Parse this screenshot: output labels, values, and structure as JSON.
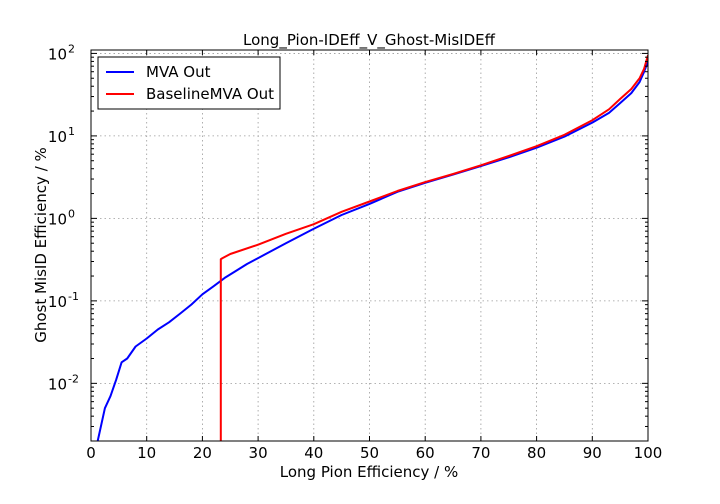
{
  "chart_data": {
    "type": "line",
    "title": "Long_Pion-IDEff_V_Ghost-MisIDEff",
    "xlabel": "Long Pion Efficiency / %",
    "ylabel": "Ghost MisID Efficiency / %",
    "xlim": [
      0,
      100
    ],
    "ylim": [
      0.002,
      110
    ],
    "yscale": "log",
    "grid": true,
    "legend_position": "top-left",
    "x_ticks": [
      "0",
      "10",
      "20",
      "30",
      "40",
      "50",
      "60",
      "70",
      "80",
      "90",
      "100"
    ],
    "y_ticks": [
      {
        "value": 0.01,
        "base": "10",
        "exp": "-2"
      },
      {
        "value": 0.1,
        "base": "10",
        "exp": "-1"
      },
      {
        "value": 1,
        "base": "10",
        "exp": "0"
      },
      {
        "value": 10,
        "base": "10",
        "exp": "1"
      },
      {
        "value": 100,
        "base": "10",
        "exp": "2"
      }
    ],
    "series": [
      {
        "name": "MVA Out",
        "color": "#0000ff",
        "x": [
          1.2,
          2.5,
          3.5,
          4.5,
          5.5,
          6.5,
          8,
          10,
          12,
          14,
          16,
          18,
          20,
          22,
          24,
          26,
          28,
          30,
          35,
          40,
          45,
          50,
          55,
          60,
          65,
          70,
          75,
          80,
          85,
          90,
          93,
          95,
          97,
          98.5,
          99.3,
          100
        ],
        "y": [
          0.002,
          0.005,
          0.007,
          0.011,
          0.018,
          0.02,
          0.028,
          0.035,
          0.045,
          0.055,
          0.07,
          0.09,
          0.12,
          0.15,
          0.19,
          0.23,
          0.28,
          0.33,
          0.5,
          0.75,
          1.1,
          1.5,
          2.1,
          2.7,
          3.4,
          4.3,
          5.5,
          7.2,
          9.8,
          14.5,
          19,
          25,
          33,
          45,
          60,
          80
        ]
      },
      {
        "name": "BaselineMVA Out",
        "color": "#ff0000",
        "x": [
          23.3,
          23.3,
          23.6,
          25,
          30,
          35,
          40,
          45,
          50,
          55,
          60,
          65,
          70,
          75,
          80,
          85,
          90,
          93,
          95,
          97,
          98.5,
          99.3,
          100
        ],
        "y": [
          0.002,
          0.32,
          0.33,
          0.37,
          0.48,
          0.65,
          0.85,
          1.2,
          1.6,
          2.15,
          2.75,
          3.45,
          4.4,
          5.7,
          7.5,
          10.3,
          15.5,
          21,
          28,
          37,
          50,
          65,
          95
        ]
      }
    ]
  }
}
